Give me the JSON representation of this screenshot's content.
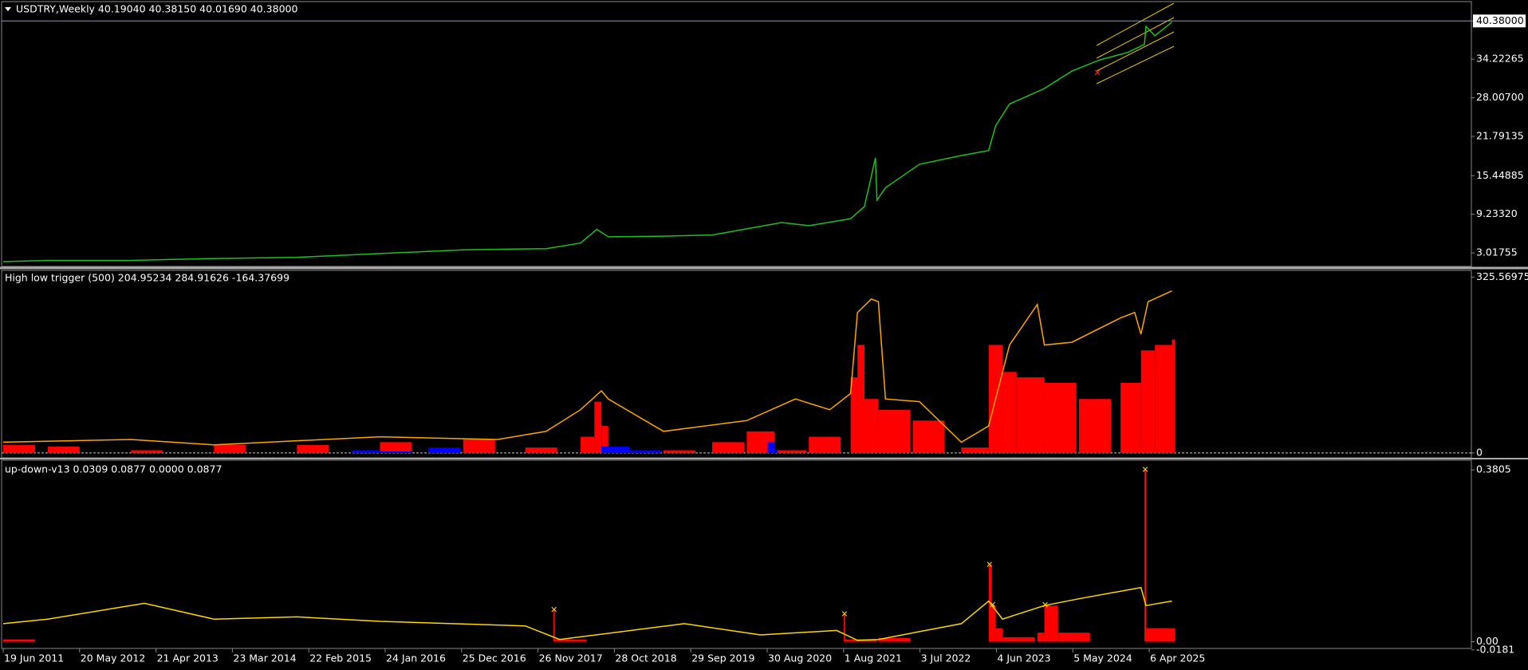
{
  "chart_data": [
    {
      "type": "line",
      "title": "USDTRY,Weekly  40.19040 40.38150 40.01690 40.38000",
      "ylim": [
        0.83,
        43.5
      ],
      "yticks": [
        {
          "value": 40.38,
          "label": "40.38000"
        },
        34.22265,
        {
          "value": 28.007,
          "label": "28.00700"
        },
        21.79135,
        15.44885,
        {
          "value": 9.2332,
          "label": "9.23320"
        },
        3.01755
      ],
      "series": [
        {
          "type": "line",
          "color": "#1fbf1f",
          "x": [
            "19 Jun 2011",
            "1 Jan 2012",
            "1 Jan 2013",
            "1 Jan 2014",
            "1 Jan 2015",
            "1 Jan 2016",
            "1 Jan 2017",
            "1 Jan 2018",
            "1 Jun 2018",
            "12 Aug 2018",
            "1 Oct 2018",
            "1 Jun 2019",
            "1 Jan 2020",
            "1 Aug 2020",
            "1 Nov 2020",
            "1 Mar 2021",
            "1 Sep 2021",
            "1 Nov 2021",
            "19 Dec 2021",
            "26 Dec 2021",
            "1 Feb 2022",
            "1 Jul 2022",
            "1 Jan 2023",
            "1 May 2023",
            "1 Jun 2023",
            "1 Aug 2023",
            "1 Jan 2024",
            "1 May 2024",
            "1 Sep 2024",
            "1 Jan 2025",
            "16 Mar 2025",
            "23 Mar 2025",
            "1 May 2025",
            "15 Jul 2025"
          ],
          "values": [
            1.6,
            1.8,
            1.8,
            2.1,
            2.3,
            2.9,
            3.5,
            3.7,
            4.6,
            6.8,
            5.6,
            5.7,
            5.9,
            7.3,
            7.9,
            7.4,
            8.5,
            10.5,
            18.3,
            11.5,
            13.5,
            17.3,
            18.7,
            19.5,
            23.5,
            27,
            29.5,
            32.3,
            34.1,
            35.3,
            36.6,
            39.5,
            38.0,
            40.2
          ]
        }
      ]
    },
    {
      "type": "combo",
      "title": "High low trigger (500) 204.95234 284.91626 -164.37699",
      "ylim": [
        -9,
        338
      ],
      "yticks": [
        325.56975,
        0
      ],
      "series": [
        {
          "type": "bar",
          "color": "#ff0000",
          "x": [
            "19 Jun 2011",
            "1 Jan 2012",
            "1 Jan 2013",
            "1 Jan 2014",
            "1 Jan 2015",
            "1 Jan 2016",
            "1 Jan 2017",
            "1 Oct 2017",
            "1 Jun 2018",
            "1 Aug 2018",
            "1 Sep 2018",
            "1 Oct 2018",
            "1 Jun 2019",
            "1 Jan 2020",
            "1 Jun 2020",
            "1 Oct 2020",
            "1 Mar 2021",
            "1 Sep 2021",
            "1 Oct 2021",
            "1 Nov 2021",
            "1 Jan 2022",
            "1 Jun 2022",
            "1 Jan 2023",
            "1 May 2023",
            "1 Jul 2023",
            "1 Sep 2023",
            "1 Jan 2024",
            "1 Jun 2024",
            "1 Dec 2024",
            "1 Mar 2025",
            "1 May 2025",
            "15 Jul 2025"
          ],
          "values": [
            15,
            12,
            5,
            15,
            15,
            20,
            25,
            10,
            30,
            95,
            50,
            5,
            5,
            20,
            40,
            5,
            30,
            140,
            200,
            100,
            80,
            60,
            10,
            200,
            150,
            140,
            130,
            100,
            130,
            190,
            200,
            210
          ]
        },
        {
          "type": "bar",
          "color": "#0000ff",
          "x": [
            "1 Sep 2015",
            "1 Jan 2016",
            "1 Aug 2016",
            "1 Sep 2018",
            "1 Jan 2019",
            "1 Sep 2020",
            "1 Oct 2020"
          ],
          "values": [
            5,
            3,
            10,
            12,
            5,
            20,
            5
          ]
        },
        {
          "type": "line",
          "color": "#ffa500",
          "x": [
            "19 Jun 2011",
            "1 Jan 2013",
            "1 Jan 2014",
            "1 Jan 2016",
            "1 Jun 2017",
            "1 Jan 2018",
            "1 Jun 2018",
            "1 Sep 2018",
            "1 Oct 2018",
            "1 Jun 2019",
            "1 Jun 2020",
            "1 Jan 2021",
            "1 Jun 2021",
            "1 Sep 2021",
            "1 Oct 2021",
            "1 Dec 2021",
            "1 Jan 2022",
            "1 Feb 2022",
            "1 Jul 2022",
            "1 Jan 2023",
            "1 May 2023",
            "1 Aug 2023",
            "1 Dec 2023",
            "1 Jan 2024",
            "1 May 2024",
            "1 Dec 2024",
            "1 Feb 2025",
            "1 Mar 2025",
            "1 Apr 2025",
            "15 Jul 2025"
          ],
          "values": [
            20,
            25,
            15,
            30,
            25,
            40,
            80,
            115,
            100,
            40,
            60,
            100,
            80,
            110,
            260,
            285,
            280,
            100,
            95,
            20,
            50,
            200,
            275,
            200,
            205,
            250,
            260,
            220,
            280,
            300
          ]
        }
      ]
    },
    {
      "type": "combo",
      "title": "up-down-v13 0.0309 0.0877 0.0000 0.0877",
      "ylim": [
        -0.015,
        0.402
      ],
      "yticks": [
        0.3805,
        {
          "value": 0,
          "label": "0.00"
        },
        -0.0181
      ],
      "xticks": [
        "19 Jun 2011",
        "20 May 2012",
        "21 Apr 2013",
        "23 Mar 2014",
        "22 Feb 2015",
        "24 Jan 2016",
        "25 Dec 2016",
        "26 Nov 2017",
        "28 Oct 2018",
        "29 Sep 2019",
        "30 Aug 2020",
        "1 Aug 2021",
        "3 Jul 2022",
        "4 Jun 2023",
        "5 May 2024",
        "6 Apr 2025"
      ],
      "series": [
        {
          "type": "bar",
          "color": "#ff0000",
          "x": [
            "19 Jun 2011",
            "1 Feb 2018",
            "8 Feb 2018",
            "1 Aug 2021",
            "8 Aug 2021",
            "1 Jan 2022",
            "1 May 2023",
            "15 May 2023",
            "1 Jun 2023",
            "1 Jul 2023",
            "1 Dec 2023",
            "1 Jan 2024",
            "1 Mar 2024",
            "16 Mar 2025",
            "23 Mar 2025",
            "15 Jul 2025"
          ],
          "values": [
            0.005,
            0.07,
            0.005,
            0.06,
            0.005,
            0.008,
            0.17,
            0.08,
            0.03,
            0.01,
            0.02,
            0.08,
            0.02,
            0.38,
            0.03,
            0.03
          ]
        },
        {
          "type": "line",
          "color": "#ffd700",
          "x": [
            "19 Jun 2011",
            "1 Jan 2012",
            "1 Mar 2013",
            "1 Jan 2014",
            "1 Jan 2015",
            "1 Jan 2016",
            "1 Oct 2017",
            "1 Mar 2018",
            "1 Sep 2019",
            "1 Aug 2020",
            "1 Jul 2021",
            "1 Oct 2021",
            "1 Jan 2022",
            "1 Jan 2023",
            "1 May 2023",
            "1 Jul 2023",
            "1 Jan 2024",
            "1 Jun 2024",
            "1 Mar 2025",
            "23 Mar 2025",
            "15 Jul 2025"
          ],
          "values": [
            0.04,
            0.05,
            0.085,
            0.05,
            0.055,
            0.045,
            0.035,
            0.005,
            0.04,
            0.015,
            0.025,
            0.003,
            0.005,
            0.04,
            0.09,
            0.05,
            0.08,
            0.095,
            0.12,
            0.08,
            0.09
          ]
        }
      ]
    }
  ]
}
